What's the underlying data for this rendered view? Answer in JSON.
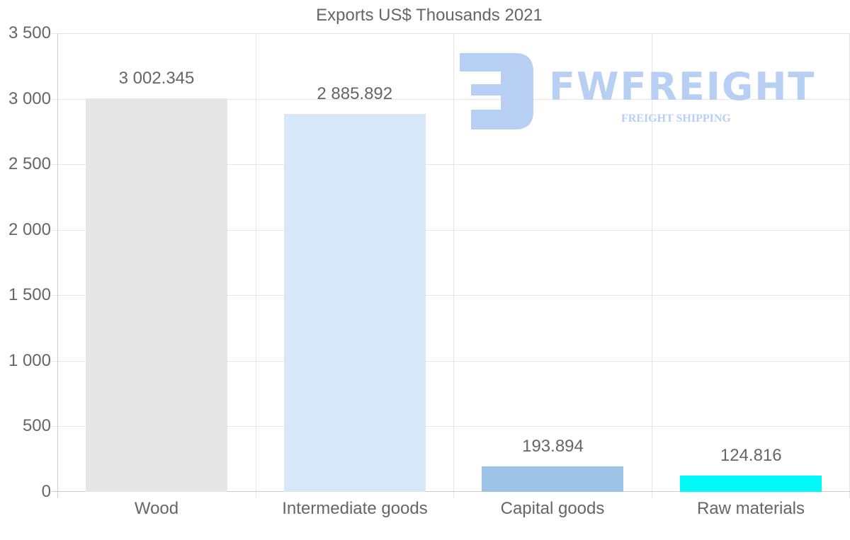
{
  "chart_data": {
    "type": "bar",
    "title": "Exports US$ Thousands 2021",
    "xlabel": "",
    "ylabel": "",
    "categories": [
      "Wood",
      "Intermediate goods",
      "Capital goods",
      "Raw materials"
    ],
    "values": [
      3002.345,
      2885.892,
      193.894,
      124.816
    ],
    "value_labels": [
      "3 002.345",
      "2 885.892",
      "193.894",
      "124.816"
    ],
    "colors": [
      "#e6e6e6",
      "#d6e8f9",
      "#9dc3e6",
      "#00f8f8"
    ],
    "ylim": [
      0,
      3500
    ],
    "yticks": [
      0,
      500,
      1000,
      1500,
      2000,
      2500,
      3000,
      3500
    ],
    "ytick_labels": [
      "0",
      "500",
      "1 000",
      "1 500",
      "2 000",
      "2 500",
      "3 000",
      "3 500"
    ],
    "grid": true,
    "legend": null
  },
  "watermark": {
    "brand": "FWFREIGHT",
    "tagline": "FREIGHT SHIPPING",
    "color": "#b3cdf3"
  }
}
